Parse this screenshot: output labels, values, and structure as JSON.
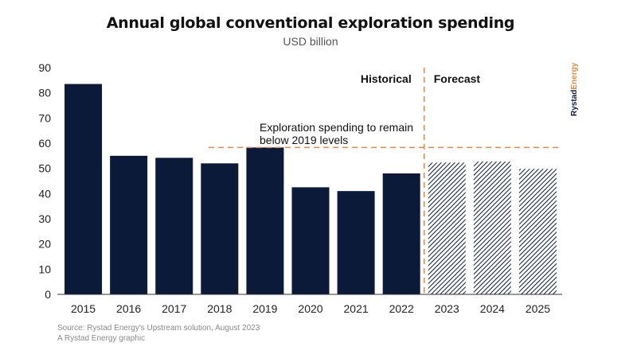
{
  "chart_data": {
    "type": "bar",
    "title": "Annual global conventional exploration spending",
    "subtitle": "USD billion",
    "categories": [
      "2015",
      "2016",
      "2017",
      "2018",
      "2019",
      "2020",
      "2021",
      "2022",
      "2023",
      "2024",
      "2025"
    ],
    "values": [
      83.5,
      55,
      54.2,
      52,
      58.3,
      42.5,
      41,
      48,
      52.3,
      52.7,
      49.8
    ],
    "forecast_from": "2023",
    "ylim": [
      0,
      90
    ],
    "yticks": [
      0,
      10,
      20,
      30,
      40,
      50,
      60,
      70,
      80,
      90
    ],
    "reference_line": {
      "value": 58.3,
      "style": "dashed",
      "color": "#E08A46"
    },
    "divider_label_left": "Historical",
    "divider_label_right": "Forecast",
    "annotation": [
      "Exploration spending to remain",
      "below 2019 levels"
    ],
    "grid": false,
    "legend": "none"
  },
  "colors": {
    "bar": "#0C1A3A",
    "accent": "#E08A46"
  },
  "brand": "RystadEnergy",
  "footer": {
    "source": "Source: Rystad Energy's Upstream solution, August 2023",
    "credit": "A Rystad Energy graphic"
  }
}
